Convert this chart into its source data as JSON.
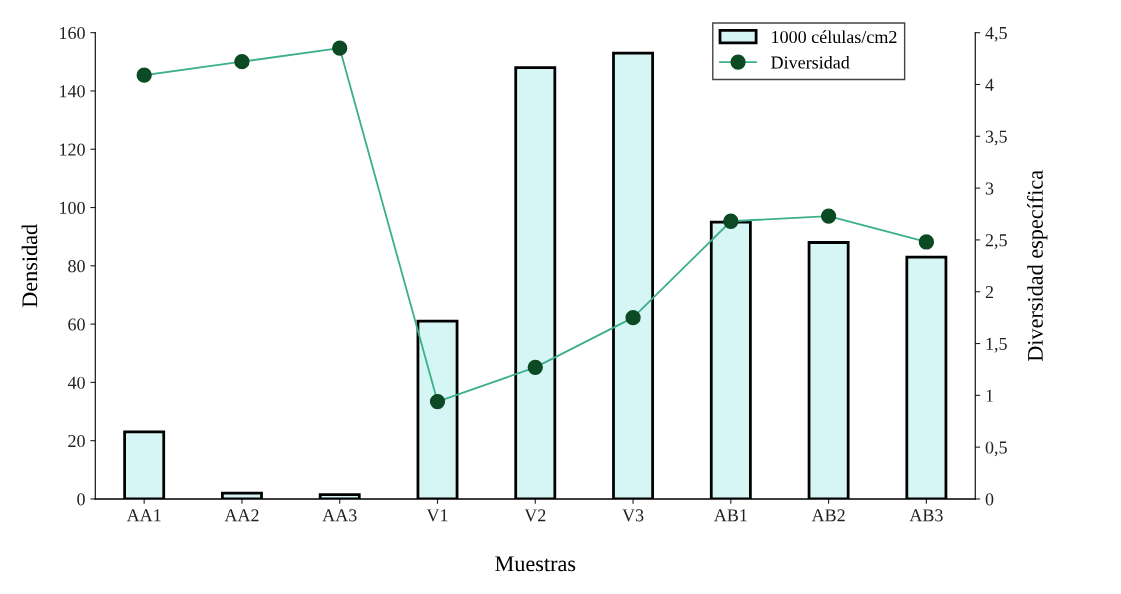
{
  "chart_data": {
    "type": "bar",
    "xlabel": "Muestras",
    "ylabel": "Densidad",
    "y2label": "Diversidad específica",
    "categories": [
      "AA1",
      "AA2",
      "AA3",
      "V1",
      "V2",
      "V3",
      "AB1",
      "AB2",
      "AB3"
    ],
    "series": [
      {
        "name": "1000 células/cm2",
        "color": "#d6f5f5",
        "values": [
          23,
          2,
          1.5,
          61,
          148,
          153,
          95,
          88,
          83
        ]
      },
      {
        "name": "Diversidad",
        "type": "line",
        "axis": "y2",
        "color": "#3cb08a",
        "values": [
          4.09,
          4.22,
          4.35,
          0.94,
          1.27,
          1.75,
          2.68,
          2.73,
          2.48
        ]
      }
    ],
    "ylim": [
      0,
      160
    ],
    "yticks": [
      0,
      20,
      40,
      60,
      80,
      100,
      120,
      140,
      160
    ],
    "y2lim": [
      0,
      4.5
    ],
    "y2ticks": [
      0,
      {
        "value": 0.5,
        "label": "0,5"
      },
      1,
      {
        "value": 1.5,
        "label": "1,5"
      },
      2,
      {
        "value": 2.5,
        "label": "2,5"
      },
      3,
      {
        "value": 3.5,
        "label": "3,5"
      },
      4,
      {
        "value": 4.5,
        "label": "4,5"
      }
    ],
    "marker": "circle",
    "line_style": "solid",
    "grid": false,
    "legend": "top right"
  }
}
